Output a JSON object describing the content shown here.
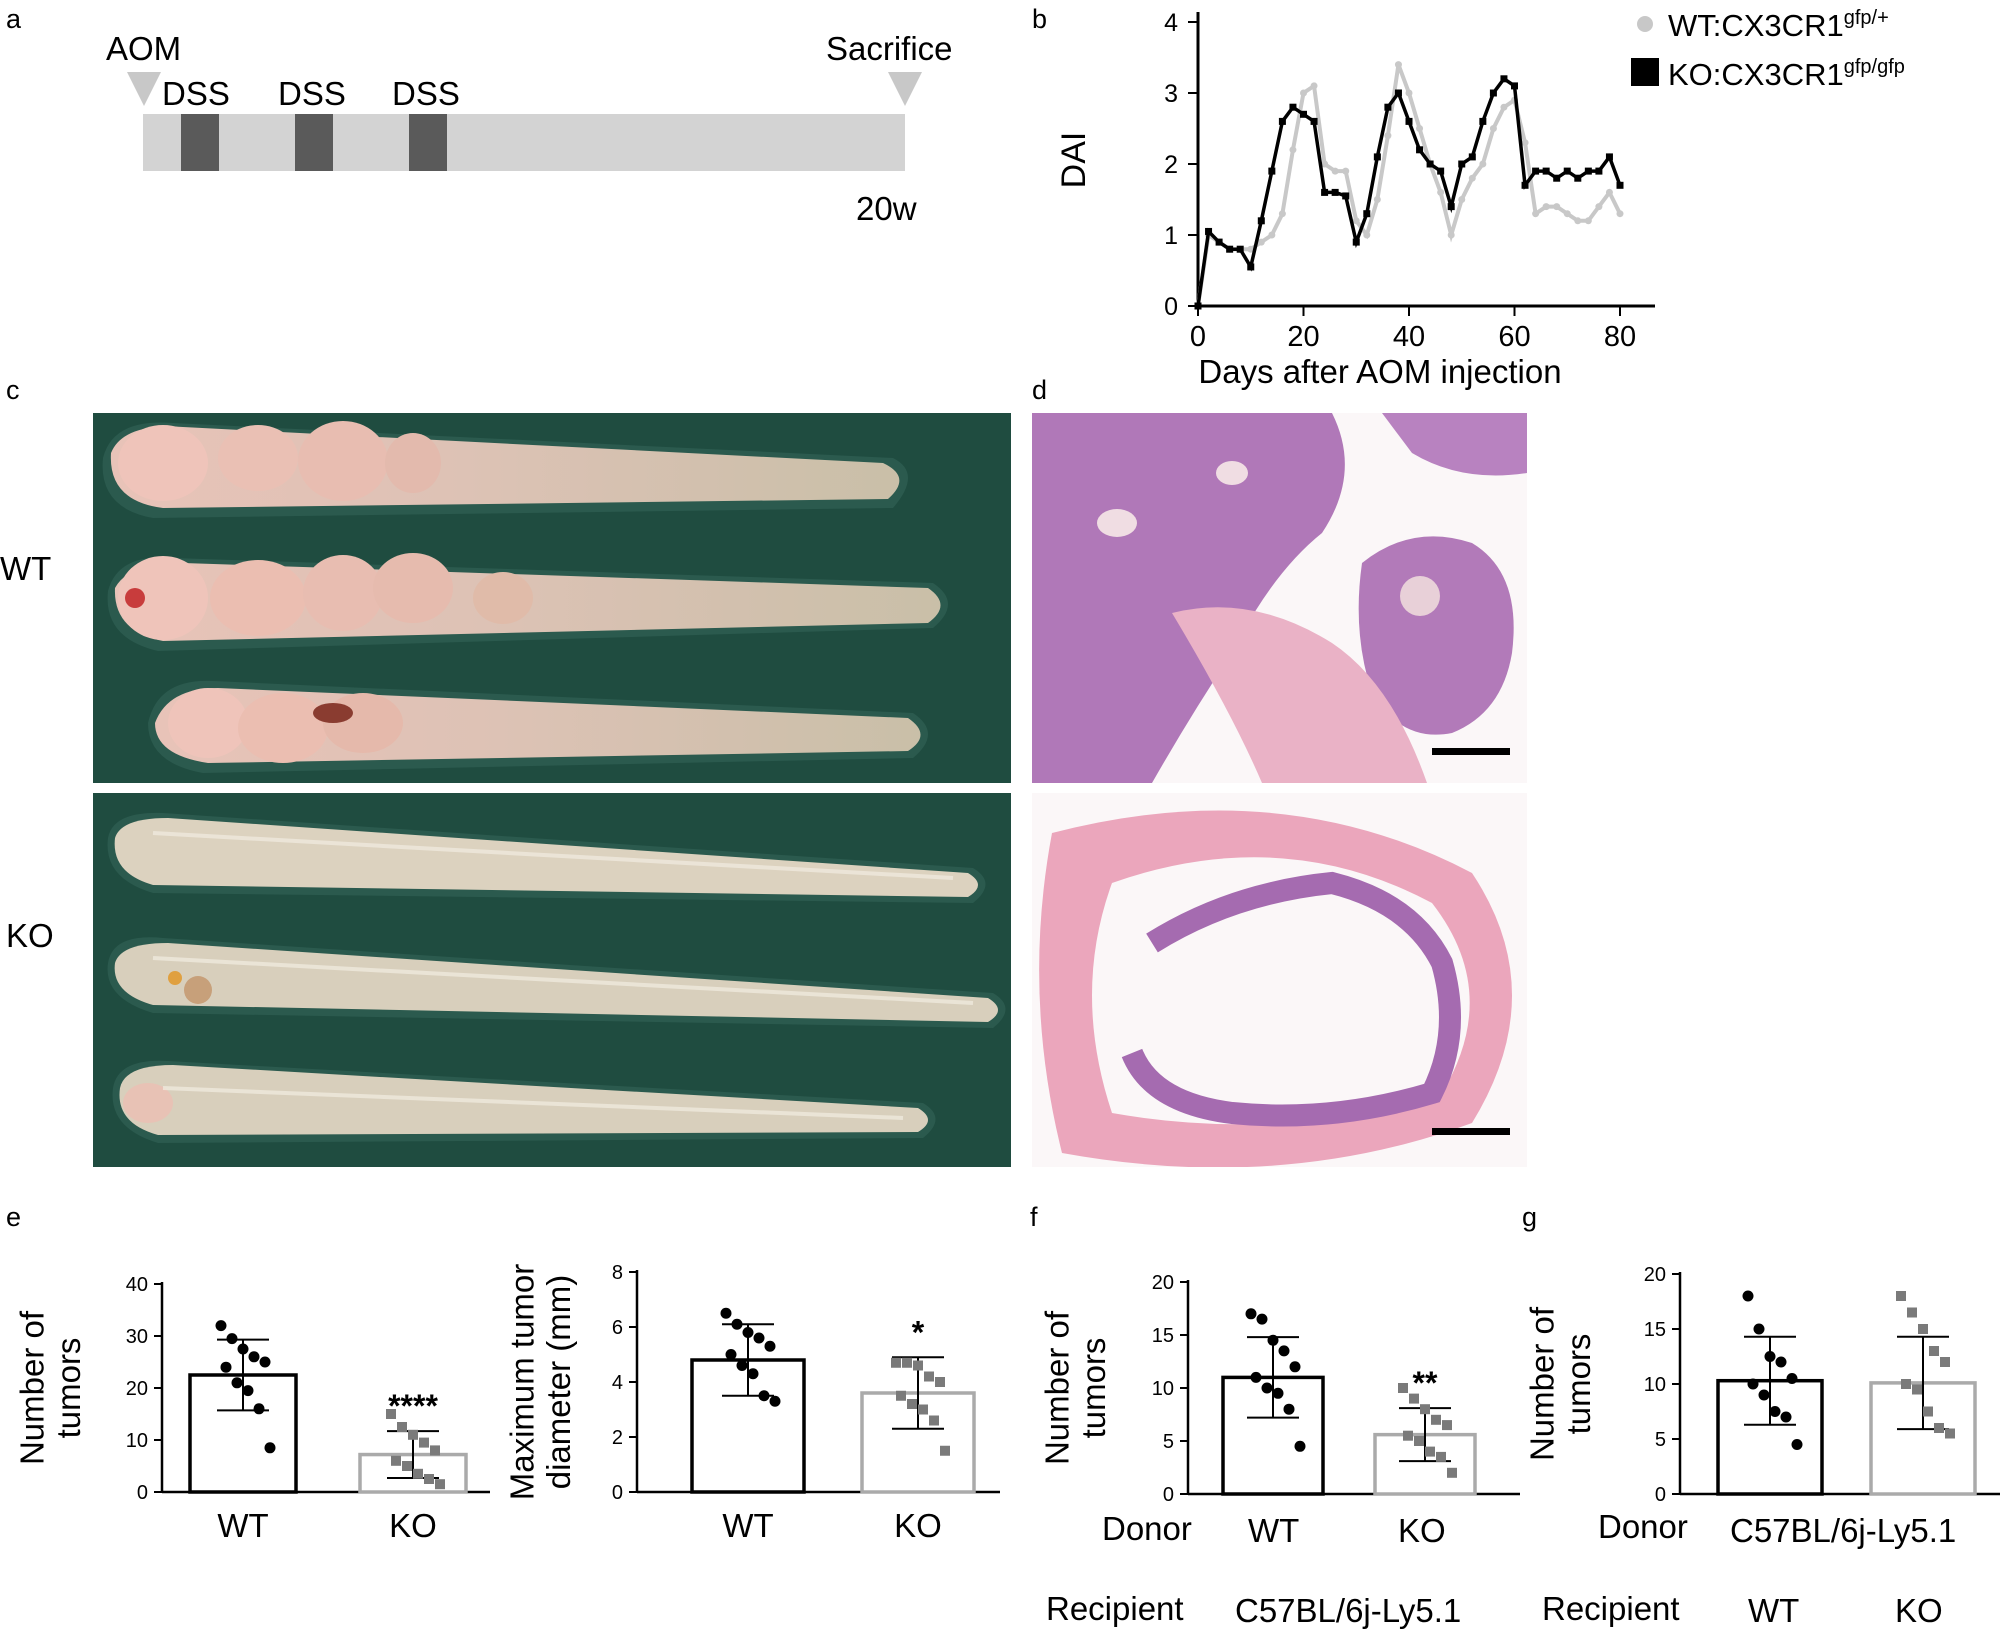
{
  "panels": {
    "a": {
      "label": "a",
      "aom": "AOM",
      "sacrifice": "Sacrifice",
      "dss": [
        "DSS",
        "DSS",
        "DSS"
      ],
      "duration": "20w",
      "colors": {
        "bar": "#d3d3d3",
        "dss": "#5a5a5a",
        "triangle": "#c8c8c8"
      }
    },
    "b": {
      "label": "b",
      "legend": {
        "wt": {
          "base": "WT:CX3CR1",
          "sup": "gfp/+"
        },
        "ko": {
          "base": "KO:CX3CR1",
          "sup": "gfp/gfp"
        }
      }
    },
    "c": {
      "label": "c",
      "row_labels": [
        "WT",
        "KO"
      ]
    },
    "d": {
      "label": "d"
    },
    "e": {
      "label": "e"
    },
    "f": {
      "label": "f",
      "donor_label": "Donor",
      "donor_values": [
        "WT",
        "KO"
      ],
      "recipient_label": "Recipient",
      "recipient_value": "C57BL/6j-Ly5.1"
    },
    "g": {
      "label": "g",
      "donor_label": "Donor",
      "donor_value": "C57BL/6j-Ly5.1",
      "recipient_label": "Recipient",
      "recipient_values": [
        "WT",
        "KO"
      ]
    }
  },
  "chart_data": [
    {
      "id": "b",
      "type": "line",
      "xlabel": "Days after AOM injection",
      "ylabel": "DAI",
      "xlim": [
        0,
        80
      ],
      "ylim": [
        0,
        4
      ],
      "xticks": [
        0,
        20,
        40,
        60,
        80
      ],
      "yticks": [
        0,
        1,
        2,
        3,
        4
      ],
      "series": [
        {
          "name": "WT:CX3CR1gfp/+",
          "color": "#c8c8c8",
          "marker": "circle",
          "x": [
            0,
            2,
            4,
            6,
            8,
            10,
            12,
            14,
            16,
            18,
            20,
            22,
            24,
            26,
            28,
            30,
            32,
            34,
            36,
            38,
            40,
            42,
            44,
            46,
            48,
            50,
            52,
            54,
            56,
            58,
            60,
            62,
            64,
            66,
            68,
            70,
            72,
            74,
            76,
            78,
            80
          ],
          "y": [
            0,
            1.0,
            0.9,
            0.8,
            0.8,
            0.8,
            0.9,
            1.0,
            1.3,
            2.2,
            3.0,
            3.1,
            2.0,
            1.9,
            1.9,
            1.2,
            1.0,
            1.5,
            2.4,
            3.4,
            3.0,
            2.5,
            2.0,
            1.6,
            1.0,
            1.5,
            1.8,
            2.0,
            2.5,
            2.8,
            2.9,
            2.3,
            1.3,
            1.4,
            1.4,
            1.3,
            1.2,
            1.2,
            1.4,
            1.6,
            1.3
          ]
        },
        {
          "name": "KO:CX3CR1gfp/gfp",
          "color": "#000000",
          "marker": "square",
          "x": [
            0,
            2,
            4,
            6,
            8,
            10,
            12,
            14,
            16,
            18,
            20,
            22,
            24,
            26,
            28,
            30,
            32,
            34,
            36,
            38,
            40,
            42,
            44,
            46,
            48,
            50,
            52,
            54,
            56,
            58,
            60,
            62,
            64,
            66,
            68,
            70,
            72,
            74,
            76,
            78,
            80
          ],
          "y": [
            0,
            1.05,
            0.9,
            0.8,
            0.8,
            0.55,
            1.2,
            1.9,
            2.6,
            2.8,
            2.7,
            2.6,
            1.6,
            1.6,
            1.55,
            0.9,
            1.3,
            2.1,
            2.8,
            3.0,
            2.6,
            2.2,
            2.0,
            1.9,
            1.4,
            2.0,
            2.1,
            2.6,
            3.0,
            3.2,
            3.1,
            1.7,
            1.9,
            1.9,
            1.8,
            1.9,
            1.8,
            1.9,
            1.9,
            2.1,
            1.7
          ]
        }
      ]
    },
    {
      "id": "e1",
      "type": "bar",
      "categories": [
        "WT",
        "KO"
      ],
      "ylabel": "Number of tumors",
      "ylim": [
        0,
        40
      ],
      "yticks": [
        0,
        10,
        20,
        30,
        40
      ],
      "values": [
        22.5,
        7.2
      ],
      "errors": [
        6.8,
        4.5
      ],
      "significance": [
        "",
        "****"
      ],
      "points": [
        [
          32,
          29.5,
          27.5,
          26,
          25,
          24,
          21,
          19.5,
          16,
          8.5
        ],
        [
          15,
          12.5,
          11,
          9.5,
          8,
          6,
          5,
          3.5,
          2.5,
          1.5
        ]
      ],
      "colors": [
        "#000000",
        "#aaaaaa"
      ]
    },
    {
      "id": "e2",
      "type": "bar",
      "categories": [
        "WT",
        "KO"
      ],
      "ylabel": "Maximum tumor diameter (mm)",
      "ylim": [
        0,
        8
      ],
      "yticks": [
        0,
        2,
        4,
        6,
        8
      ],
      "values": [
        4.8,
        3.6
      ],
      "errors": [
        1.3,
        1.3
      ],
      "significance": [
        "",
        "*"
      ],
      "points": [
        [
          6.5,
          6.1,
          5.8,
          5.6,
          5.3,
          5.0,
          4.6,
          4.3,
          3.5,
          3.3
        ],
        [
          4.7,
          4.7,
          4.6,
          4.2,
          4.0,
          3.5,
          3.2,
          3.0,
          2.6,
          1.5
        ]
      ],
      "colors": [
        "#000000",
        "#aaaaaa"
      ]
    },
    {
      "id": "f",
      "type": "bar",
      "categories": [
        "WT",
        "KO"
      ],
      "ylabel": "Number of tumors",
      "ylim": [
        0,
        20
      ],
      "yticks": [
        0,
        5,
        10,
        15,
        20
      ],
      "values": [
        11.0,
        5.6
      ],
      "errors": [
        3.8,
        2.5
      ],
      "significance": [
        "",
        "**"
      ],
      "points": [
        [
          17,
          16.5,
          14.5,
          13.5,
          12,
          11,
          10,
          9.5,
          8,
          4.5
        ],
        [
          10,
          9,
          8,
          7,
          6.5,
          5.5,
          5,
          4,
          3.5,
          2
        ]
      ],
      "colors": [
        "#000000",
        "#aaaaaa"
      ]
    },
    {
      "id": "g",
      "type": "bar",
      "categories": [
        "WT",
        "KO"
      ],
      "ylabel": "Number of tumors",
      "ylim": [
        0,
        20
      ],
      "yticks": [
        0,
        5,
        10,
        15,
        20
      ],
      "values": [
        10.3,
        10.1
      ],
      "errors": [
        4.0,
        4.2
      ],
      "significance": [
        "",
        ""
      ],
      "points": [
        [
          18,
          15,
          12.5,
          12,
          10.5,
          10,
          9,
          7.5,
          7,
          4.5
        ],
        [
          18,
          16.5,
          15,
          13,
          12,
          10,
          9.5,
          7.5,
          6,
          5.5
        ]
      ],
      "colors": [
        "#000000",
        "#aaaaaa"
      ]
    }
  ]
}
